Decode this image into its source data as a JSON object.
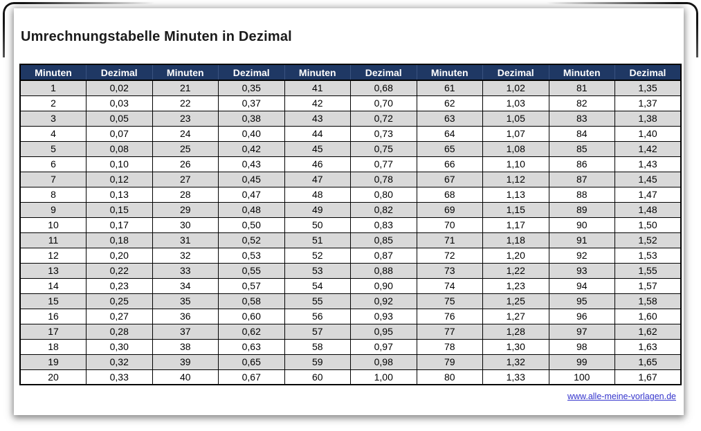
{
  "page": {
    "title": "Umrechnungstabelle Minuten in Dezimal",
    "footer_link": "www.alle-meine-vorlagen.de"
  },
  "table": {
    "column_headers": [
      "Minuten",
      "Dezimal",
      "Minuten",
      "Dezimal",
      "Minuten",
      "Dezimal",
      "Minuten",
      "Dezimal",
      "Minuten",
      "Dezimal"
    ],
    "rows": [
      [
        "1",
        "0,02",
        "21",
        "0,35",
        "41",
        "0,68",
        "61",
        "1,02",
        "81",
        "1,35"
      ],
      [
        "2",
        "0,03",
        "22",
        "0,37",
        "42",
        "0,70",
        "62",
        "1,03",
        "82",
        "1,37"
      ],
      [
        "3",
        "0,05",
        "23",
        "0,38",
        "43",
        "0,72",
        "63",
        "1,05",
        "83",
        "1,38"
      ],
      [
        "4",
        "0,07",
        "24",
        "0,40",
        "44",
        "0,73",
        "64",
        "1,07",
        "84",
        "1,40"
      ],
      [
        "5",
        "0,08",
        "25",
        "0,42",
        "45",
        "0,75",
        "65",
        "1,08",
        "85",
        "1,42"
      ],
      [
        "6",
        "0,10",
        "26",
        "0,43",
        "46",
        "0,77",
        "66",
        "1,10",
        "86",
        "1,43"
      ],
      [
        "7",
        "0,12",
        "27",
        "0,45",
        "47",
        "0,78",
        "67",
        "1,12",
        "87",
        "1,45"
      ],
      [
        "8",
        "0,13",
        "28",
        "0,47",
        "48",
        "0,80",
        "68",
        "1,13",
        "88",
        "1,47"
      ],
      [
        "9",
        "0,15",
        "29",
        "0,48",
        "49",
        "0,82",
        "69",
        "1,15",
        "89",
        "1,48"
      ],
      [
        "10",
        "0,17",
        "30",
        "0,50",
        "50",
        "0,83",
        "70",
        "1,17",
        "90",
        "1,50"
      ],
      [
        "11",
        "0,18",
        "31",
        "0,52",
        "51",
        "0,85",
        "71",
        "1,18",
        "91",
        "1,52"
      ],
      [
        "12",
        "0,20",
        "32",
        "0,53",
        "52",
        "0,87",
        "72",
        "1,20",
        "92",
        "1,53"
      ],
      [
        "13",
        "0,22",
        "33",
        "0,55",
        "53",
        "0,88",
        "73",
        "1,22",
        "93",
        "1,55"
      ],
      [
        "14",
        "0,23",
        "34",
        "0,57",
        "54",
        "0,90",
        "74",
        "1,23",
        "94",
        "1,57"
      ],
      [
        "15",
        "0,25",
        "35",
        "0,58",
        "55",
        "0,92",
        "75",
        "1,25",
        "95",
        "1,58"
      ],
      [
        "16",
        "0,27",
        "36",
        "0,60",
        "56",
        "0,93",
        "76",
        "1,27",
        "96",
        "1,60"
      ],
      [
        "17",
        "0,28",
        "37",
        "0,62",
        "57",
        "0,95",
        "77",
        "1,28",
        "97",
        "1,62"
      ],
      [
        "18",
        "0,30",
        "38",
        "0,63",
        "58",
        "0,97",
        "78",
        "1,30",
        "98",
        "1,63"
      ],
      [
        "19",
        "0,32",
        "39",
        "0,65",
        "59",
        "0,98",
        "79",
        "1,32",
        "99",
        "1,65"
      ],
      [
        "20",
        "0,33",
        "40",
        "0,67",
        "60",
        "1,00",
        "80",
        "1,33",
        "100",
        "1,67"
      ]
    ]
  },
  "colors": {
    "header_bg": "#1F3864",
    "header_text": "#FFFFFF",
    "header_divider": "#3A5380",
    "row_alt_bg": "#D9D9D9",
    "link_color": "#3333CC"
  }
}
